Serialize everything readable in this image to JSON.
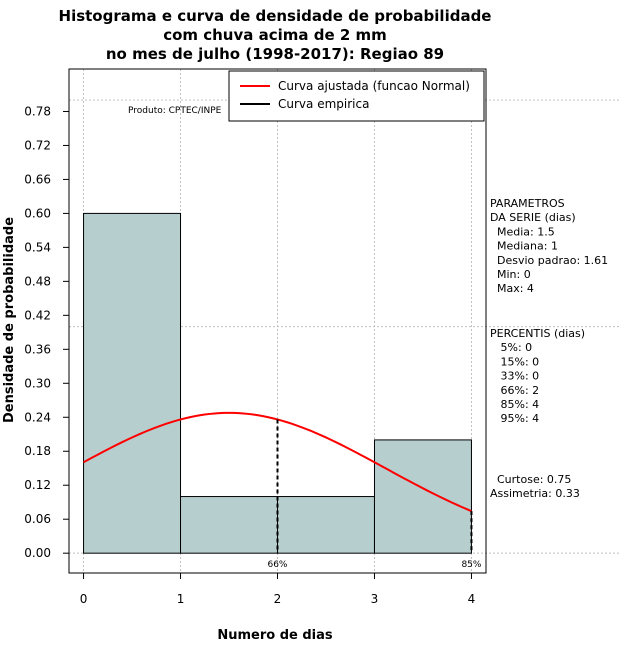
{
  "chart_data": {
    "type": "bar",
    "title_lines": [
      "Histograma e curva de densidade de probabilidade",
      "com chuva acima de 2 mm",
      "no mes de julho (1998-2017): Regiao 89"
    ],
    "xlabel": "Numero de dias",
    "ylabel": "Densidade de probabilidade",
    "xlim": [
      -0.15,
      4.15
    ],
    "ylim": [
      -0.035,
      0.855
    ],
    "x_ticks": [
      "0",
      "1",
      "2",
      "3",
      "4"
    ],
    "y_ticks": [
      "0.00",
      "0.06",
      "0.12",
      "0.18",
      "0.24",
      "0.30",
      "0.36",
      "0.42",
      "0.48",
      "0.54",
      "0.60",
      "0.66",
      "0.72",
      "0.78"
    ],
    "bins": [
      {
        "start": 0,
        "end": 1,
        "density": 0.6
      },
      {
        "start": 1,
        "end": 2,
        "density": 0.1
      },
      {
        "start": 2,
        "end": 3,
        "density": 0.1
      },
      {
        "start": 3,
        "end": 4,
        "density": 0.2
      }
    ],
    "normal_fit": {
      "mean": 1.5,
      "sd": 1.61,
      "x_from": 0,
      "x_to": 4
    },
    "percentile_markers": [
      {
        "x": 2,
        "label": "66%"
      },
      {
        "x": 4,
        "label": "85%"
      }
    ],
    "legend": [
      {
        "label": "Curva ajustada (funcao Normal)",
        "color": "#ff0000"
      },
      {
        "label": "Curva empirica",
        "color": "#000000"
      }
    ],
    "source": "Produto: CPTEC/INPE",
    "colors": {
      "bar_fill": "#b6cece",
      "curve": "#ff0000",
      "grid": "#c0c0c0"
    }
  },
  "side_panel": {
    "params_lines": [
      "PARAMETROS",
      "DA SERIE (dias)",
      "  Media: 1.5",
      "  Mediana: 1",
      "  Desvio padrao: 1.61",
      "  Min: 0",
      "  Max: 4"
    ],
    "percentis_lines": [
      "PERCENTIS (dias)",
      "   5%: 0",
      "   15%: 0",
      "   33%: 0",
      "   66%: 2",
      "   85%: 4",
      "   95%: 4"
    ],
    "shape_lines": [
      "  Curtose: 0.75",
      "Assimetria: 0.33"
    ]
  }
}
